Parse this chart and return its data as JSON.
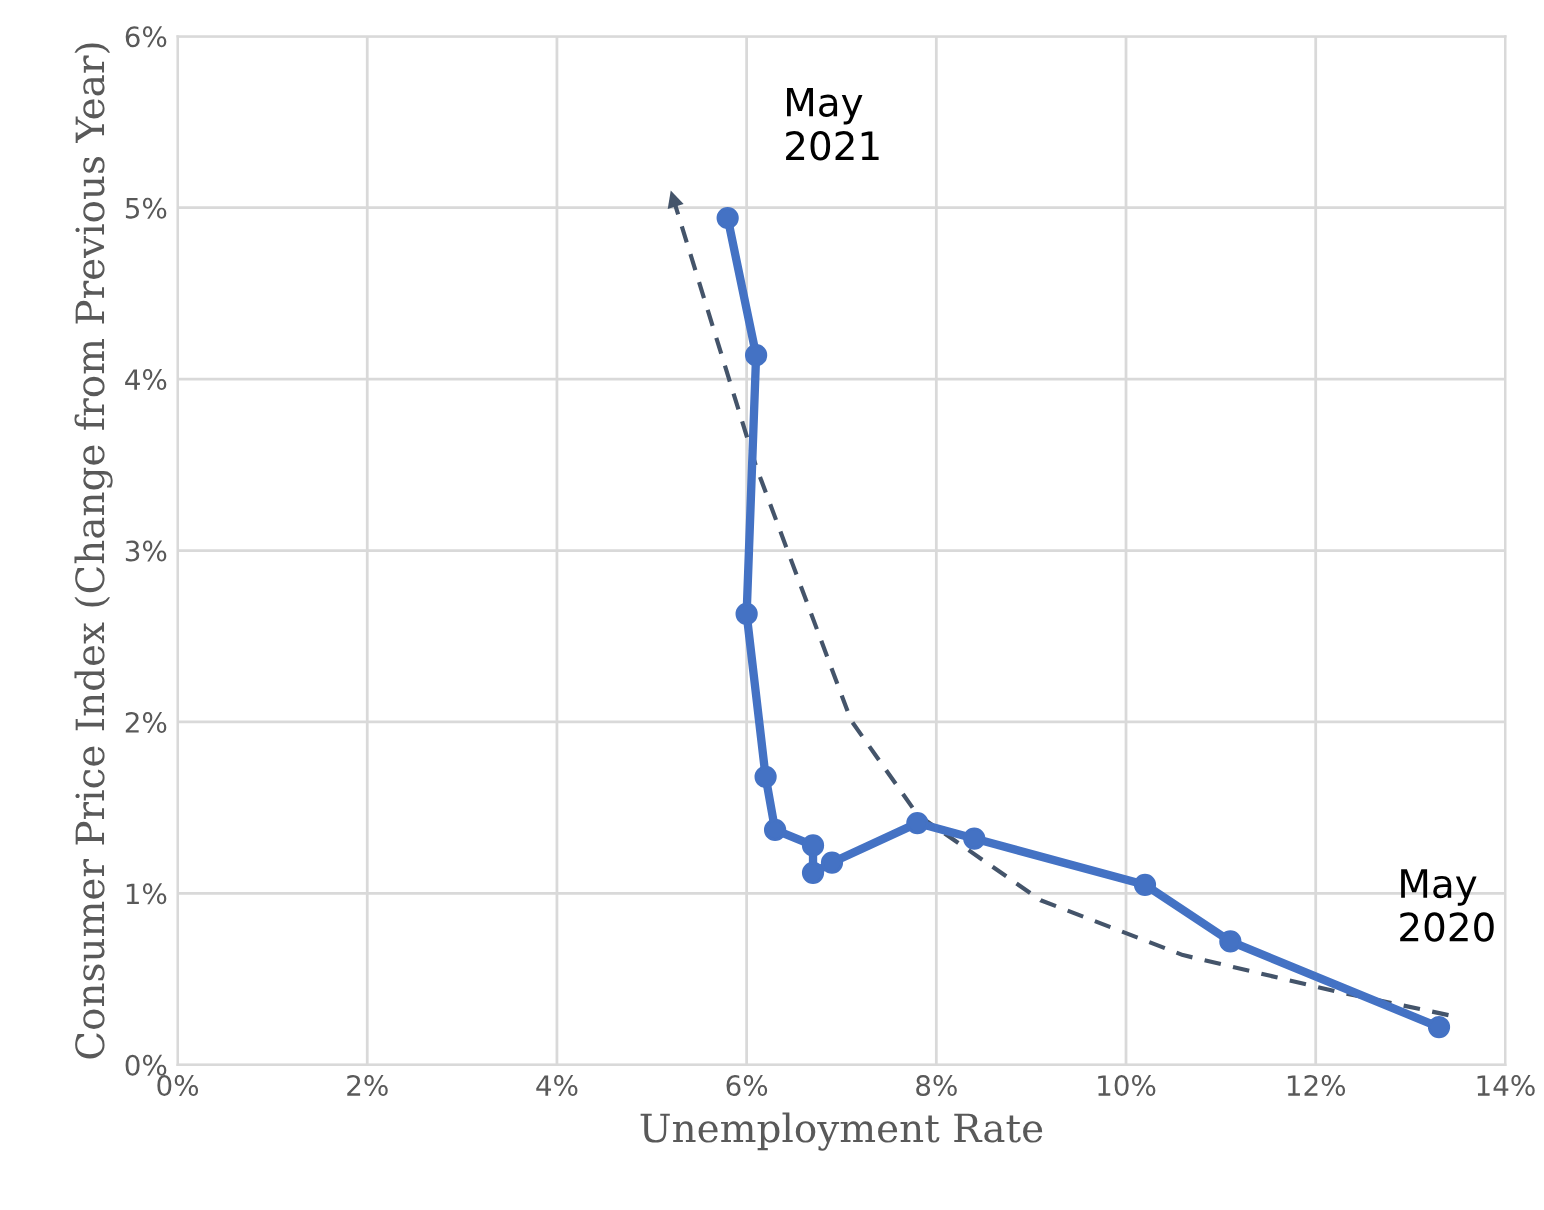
{
  "chart_data": {
    "type": "line",
    "xlabel": "Unemployment Rate",
    "ylabel": "Consumer Price Index (Change from Previous Year)",
    "xlim": [
      0,
      14
    ],
    "ylim": [
      0,
      6
    ],
    "grid": true,
    "xticks": [
      {
        "value": 0,
        "label": "0%"
      },
      {
        "value": 2,
        "label": "2%"
      },
      {
        "value": 4,
        "label": "4%"
      },
      {
        "value": 6,
        "label": "6%"
      },
      {
        "value": 8,
        "label": "8%"
      },
      {
        "value": 10,
        "label": "10%"
      },
      {
        "value": 12,
        "label": "12%"
      },
      {
        "value": 14,
        "label": "14%"
      }
    ],
    "yticks": [
      {
        "value": 0,
        "label": "0%"
      },
      {
        "value": 1,
        "label": "1%"
      },
      {
        "value": 2,
        "label": "2%"
      },
      {
        "value": 3,
        "label": "3%"
      },
      {
        "value": 4,
        "label": "4%"
      },
      {
        "value": 5,
        "label": "5%"
      },
      {
        "value": 6,
        "label": "6%"
      }
    ],
    "series": [
      {
        "color": "#4472c4",
        "marker": "circle",
        "line_style": "solid",
        "x": [
          13.3,
          11.1,
          10.2,
          8.4,
          7.8,
          6.9,
          6.7,
          6.7,
          6.3,
          6.2,
          6.0,
          6.1,
          5.8
        ],
        "values": [
          0.22,
          0.72,
          1.05,
          1.32,
          1.41,
          1.18,
          1.12,
          1.28,
          1.37,
          1.68,
          2.63,
          4.14,
          4.94
        ]
      },
      {
        "color": "#44546a",
        "marker": "none",
        "line_style": "dashed",
        "x": [
          13.4,
          12.2,
          10.6,
          9.1,
          7.8,
          7.1,
          6.1,
          5.2
        ],
        "values": [
          0.29,
          0.43,
          0.64,
          0.96,
          1.46,
          2.01,
          3.49,
          5.1
        ]
      }
    ],
    "annotations": [
      {
        "text": "May\n2021",
        "x": 5.8,
        "y": 4.94
      },
      {
        "text": "May\n2020",
        "x": 13.3,
        "y": 0.22
      }
    ]
  }
}
